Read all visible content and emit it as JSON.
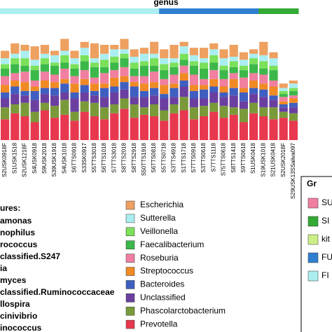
{
  "chart_data": {
    "type": "stacked_bar",
    "title": "genus",
    "ylim": [
      0,
      80
    ],
    "categories": [
      "S2USK0918F",
      "S1USK1518",
      "S2USK1218F",
      "S4USK0918",
      "S9USK2018",
      "S39USK1918",
      "S4USK1018",
      "S6TTS0918",
      "S33SK0917",
      "S5TTS3018",
      "S6TTS1018",
      "S7TTS3018",
      "S8TTS2018",
      "S8TTS2918",
      "S50TTS1918",
      "S6TTS0818",
      "S5TTS0718",
      "S3TTS4918",
      "S1TTS1718",
      "S7TTS0918",
      "S3TTS0618",
      "S7TTS1118",
      "S75TTS0618",
      "S8TTS1418",
      "S9TTS0618",
      "S1USK0418",
      "S19USK1018",
      "S21USK0418",
      "S2USK2018F",
      "S29USK13SSaliva097"
    ],
    "sample_groups": [
      "FI",
      "FI",
      "FI",
      "FI",
      "FI",
      "FI",
      "FI",
      "FI",
      "FI",
      "FI",
      "FI",
      "FI",
      "FI",
      "FI",
      "FI",
      "FI",
      "FU",
      "FU",
      "FU",
      "FU",
      "FU",
      "FU",
      "FU",
      "FU",
      "FU",
      "FU",
      "SI",
      "SI",
      "SI",
      "SI"
    ],
    "series": [
      {
        "name": "Prevotella",
        "color": "#e8384f",
        "values": [
          14,
          18,
          16,
          12,
          20,
          15,
          17,
          13,
          19,
          16,
          14,
          18,
          21,
          15,
          17,
          16,
          13,
          18,
          20,
          14,
          16,
          19,
          15,
          17,
          12,
          18,
          16,
          14,
          15,
          13
        ]
      },
      {
        "name": "Phascolarctobacterium",
        "color": "#7a9a3a",
        "values": [
          8,
          6,
          9,
          7,
          5,
          8,
          10,
          6,
          7,
          9,
          8,
          6,
          7,
          9,
          5,
          8,
          7,
          6,
          9,
          8,
          7,
          6,
          8,
          5,
          9,
          7,
          6,
          8,
          4,
          5
        ]
      },
      {
        "name": "Unclassified",
        "color": "#6b3fa0",
        "values": [
          6,
          7,
          5,
          8,
          6,
          7,
          5,
          9,
          6,
          5,
          7,
          8,
          6,
          5,
          7,
          6,
          8,
          5,
          7,
          6,
          5,
          7,
          6,
          8,
          5,
          6,
          7,
          5,
          3,
          4
        ]
      },
      {
        "name": "Bacteroides",
        "color": "#3f5fc0",
        "values": [
          4,
          5,
          3,
          6,
          4,
          5,
          6,
          4,
          5,
          3,
          6,
          4,
          5,
          7,
          4,
          5,
          3,
          6,
          4,
          5,
          6,
          4,
          3,
          5,
          6,
          4,
          5,
          3,
          2,
          3
        ]
      },
      {
        "name": "Streptococcus",
        "color": "#f08a24",
        "values": [
          5,
          4,
          6,
          3,
          5,
          4,
          3,
          6,
          4,
          5,
          3,
          6,
          4,
          3,
          5,
          4,
          6,
          3,
          5,
          4,
          3,
          5,
          4,
          6,
          3,
          5,
          4,
          6,
          2,
          3
        ]
      },
      {
        "name": "Roseburia",
        "color": "#f07fa0",
        "values": [
          6,
          5,
          7,
          4,
          6,
          5,
          7,
          5,
          6,
          4,
          7,
          5,
          6,
          4,
          5,
          7,
          4,
          6,
          5,
          7,
          4,
          6,
          5,
          4,
          7,
          5,
          6,
          4,
          3,
          2
        ]
      },
      {
        "name": "Faecalibacterium",
        "color": "#3cb84a",
        "values": [
          5,
          6,
          4,
          7,
          5,
          6,
          4,
          5,
          6,
          7,
          4,
          5,
          6,
          5,
          7,
          4,
          6,
          5,
          4,
          6,
          7,
          5,
          6,
          4,
          5,
          6,
          4,
          7,
          2,
          3
        ]
      },
      {
        "name": "Veillonella",
        "color": "#7be05a",
        "values": [
          3,
          4,
          5,
          3,
          4,
          2,
          5,
          3,
          4,
          3,
          5,
          4,
          3,
          4,
          3,
          5,
          4,
          3,
          4,
          3,
          4,
          5,
          3,
          4,
          3,
          4,
          5,
          3,
          2,
          2
        ]
      },
      {
        "name": "Sutterella",
        "color": "#aaeef0",
        "values": [
          4,
          3,
          5,
          4,
          3,
          5,
          3,
          4,
          5,
          3,
          4,
          5,
          3,
          4,
          5,
          3,
          4,
          3,
          5,
          4,
          3,
          4,
          5,
          3,
          4,
          3,
          4,
          5,
          2,
          3
        ]
      },
      {
        "name": "Escherichia",
        "color": "#eea060",
        "values": [
          5,
          7,
          4,
          9,
          6,
          3,
          8,
          5,
          4,
          10,
          6,
          3,
          7,
          5,
          4,
          8,
          6,
          9,
          3,
          5,
          7,
          4,
          6,
          8,
          5,
          3,
          9,
          4,
          3,
          2
        ]
      }
    ],
    "feature_legend": {
      "title": "ures:",
      "items": [
        "amonas",
        "nophilus",
        "rococcus",
        "classified.S247",
        "ia",
        "myces",
        "classified.Ruminococcaceae",
        "llospira",
        "cinivibrio",
        "inococcus"
      ]
    },
    "group_legend": {
      "title": "Gr",
      "items": [
        {
          "name": "SU",
          "color": "#f07fa0"
        },
        {
          "name": "SI",
          "color": "#33aa33"
        },
        {
          "name": "kit",
          "color": "#ccee88"
        },
        {
          "name": "FU",
          "color": "#2f7fd0"
        },
        {
          "name": "FI",
          "color": "#aaeef0"
        }
      ]
    }
  }
}
